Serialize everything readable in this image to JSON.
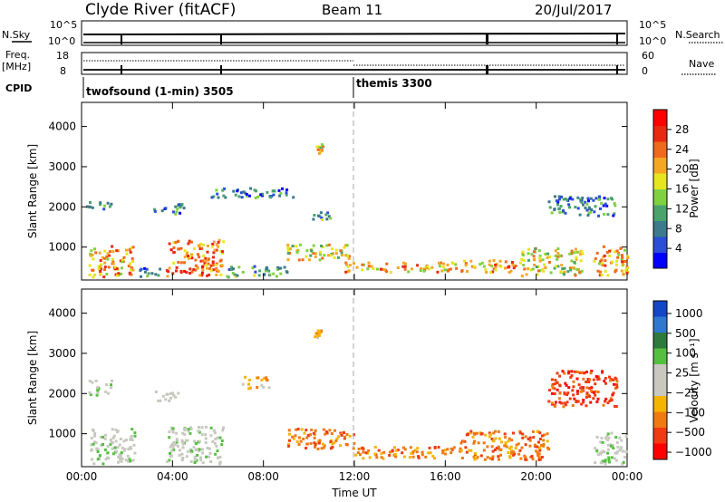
{
  "header": {
    "station": "Clyde River (fitACF)",
    "beam": "Beam 11",
    "date": "20/Jul/2017"
  },
  "top_panels": {
    "nsky_label": "N.Sky",
    "nsky_ticks": [
      "10^5",
      "10^0"
    ],
    "nsearch_label": "N.Search",
    "nsearch_ticks": [
      "10^5",
      "10^0"
    ],
    "freq_label": "Freq.",
    "freq_unit": "[MHz]",
    "freq_ticks": [
      "18",
      "8"
    ],
    "nave_label": "Nave",
    "nave_ticks": [
      "60",
      "0"
    ],
    "cpid_label": "CPID",
    "cpid_segments": [
      {
        "label": "twofsound (1-min) 3505",
        "start_hour": 0
      },
      {
        "label": "themis 3300",
        "start_hour": 12
      }
    ]
  },
  "colors": {
    "power_scale": [
      "#0000ff",
      "#2a4fd6",
      "#3c7a8c",
      "#49a36b",
      "#7fd140",
      "#e6e620",
      "#f5a623",
      "#f06a1c",
      "#e82a10",
      "#ff0000"
    ],
    "velocity_scale": [
      "#1446c8",
      "#2e78d2",
      "#2e7a3c",
      "#55c040",
      "#c8c8c0",
      "#c8c8c0",
      "#f5b400",
      "#f07a10",
      "#f03a10",
      "#ff0000"
    ]
  },
  "chart_data": [
    {
      "type": "heatmap",
      "name": "power",
      "x_unit": "hours UT",
      "xlim": [
        0,
        24
      ],
      "x_ticks": [
        "00:00",
        "04:00",
        "08:00",
        "12:00",
        "16:00",
        "20:00",
        "00:00"
      ],
      "xlabel": "Time UT",
      "ylabel": "Slant Range [km]",
      "ylim": [
        180,
        4600
      ],
      "y_ticks": [
        "1000",
        "2000",
        "3000",
        "4000"
      ],
      "colorbar_label": "Power [dB]",
      "colorbar_ticks": [
        "4",
        "8",
        "12",
        "16",
        "20",
        "24",
        "28"
      ],
      "colorbar_range": [
        0,
        32
      ],
      "regions": [
        {
          "t0": 0.3,
          "t1": 2.3,
          "r0": 280,
          "r1": 1050,
          "v": 22
        },
        {
          "t0": 2.4,
          "t1": 3.4,
          "r0": 280,
          "r1": 500,
          "v": 8
        },
        {
          "t0": 3.7,
          "t1": 6.2,
          "r0": 300,
          "r1": 1200,
          "v": 24
        },
        {
          "t0": 6.3,
          "t1": 9.0,
          "r0": 280,
          "r1": 550,
          "v": 10
        },
        {
          "t0": 9.0,
          "t1": 11.8,
          "r0": 700,
          "r1": 1100,
          "v": 16
        },
        {
          "t0": 11.5,
          "t1": 16.5,
          "r0": 400,
          "r1": 650,
          "v": 22
        },
        {
          "t0": 16.5,
          "t1": 19.3,
          "r0": 400,
          "r1": 700,
          "v": 20
        },
        {
          "t0": 19.3,
          "t1": 22.0,
          "r0": 300,
          "r1": 1000,
          "v": 18
        },
        {
          "t0": 22.5,
          "t1": 24.0,
          "r0": 300,
          "r1": 1050,
          "v": 22
        },
        {
          "t0": 0.2,
          "t1": 1.3,
          "r0": 1950,
          "r1": 2150,
          "v": 6
        },
        {
          "t0": 3.0,
          "t1": 4.5,
          "r0": 1850,
          "r1": 2100,
          "v": 8
        },
        {
          "t0": 5.6,
          "t1": 9.3,
          "r0": 2250,
          "r1": 2500,
          "v": 6
        },
        {
          "t0": 10.0,
          "t1": 11.0,
          "r0": 1700,
          "r1": 1900,
          "v": 10
        },
        {
          "t0": 10.2,
          "t1": 10.6,
          "r0": 3350,
          "r1": 3600,
          "v": 16
        },
        {
          "t0": 20.5,
          "t1": 23.5,
          "r0": 1800,
          "r1": 2300,
          "v": 7
        }
      ]
    },
    {
      "type": "heatmap",
      "name": "velocity",
      "x_unit": "hours UT",
      "xlim": [
        0,
        24
      ],
      "x_ticks": [
        "00:00",
        "04:00",
        "08:00",
        "12:00",
        "16:00",
        "20:00",
        "00:00"
      ],
      "xlabel": "Time UT",
      "ylabel": "Slant Range [km]",
      "ylim": [
        180,
        4600
      ],
      "y_ticks": [
        "1000",
        "2000",
        "3000",
        "4000"
      ],
      "colorbar_label": "Velocity [m s⁻¹]",
      "colorbar_ticks": [
        "1000",
        "500",
        "100",
        "25",
        "−25",
        "−100",
        "−500",
        "−1000"
      ],
      "regions": [
        {
          "t0": 0.3,
          "t1": 2.3,
          "r0": 280,
          "r1": 1150,
          "v": 4
        },
        {
          "t0": 3.7,
          "t1": 6.2,
          "r0": 280,
          "r1": 1200,
          "v": 4
        },
        {
          "t0": 9.0,
          "t1": 12.0,
          "r0": 650,
          "r1": 1150,
          "v": 7
        },
        {
          "t0": 12.0,
          "t1": 16.5,
          "r0": 400,
          "r1": 700,
          "v": 7
        },
        {
          "t0": 16.5,
          "t1": 20.5,
          "r0": 380,
          "r1": 1100,
          "v": 7
        },
        {
          "t0": 22.5,
          "t1": 24.0,
          "r0": 280,
          "r1": 1050,
          "v": 4
        },
        {
          "t0": 0.3,
          "t1": 1.3,
          "r0": 1950,
          "r1": 2350,
          "v": 4
        },
        {
          "t0": 3.2,
          "t1": 4.3,
          "r0": 1850,
          "r1": 2100,
          "v": 4
        },
        {
          "t0": 7.0,
          "t1": 8.2,
          "r0": 2150,
          "r1": 2450,
          "v": 6
        },
        {
          "t0": 10.2,
          "t1": 10.5,
          "r0": 3400,
          "r1": 3600,
          "v": 6
        },
        {
          "t0": 20.5,
          "t1": 23.5,
          "r0": 1700,
          "r1": 2600,
          "v": 8
        }
      ]
    }
  ]
}
